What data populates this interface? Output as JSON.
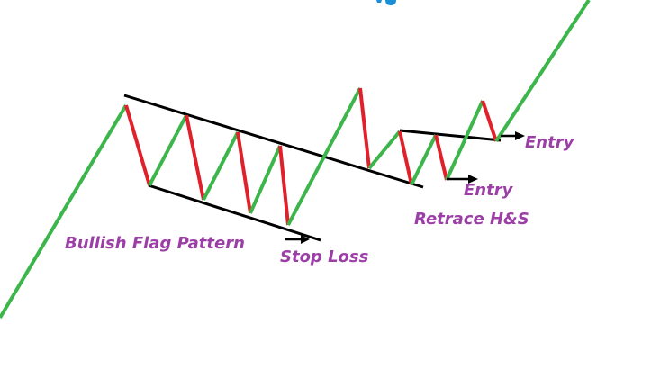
{
  "colors": {
    "up_leg": "#3cb54a",
    "down_leg": "#e0202a",
    "trendline": "#000000",
    "label_text": "#9b3fa6",
    "partial_title": "#1a8fd8"
  },
  "labels": {
    "pattern": "Bullish Flag Pattern",
    "stop_loss": "Stop Loss",
    "entry_upper": "Entry",
    "entry_lower": "Entry",
    "retrace": "Retrace H&S"
  }
}
